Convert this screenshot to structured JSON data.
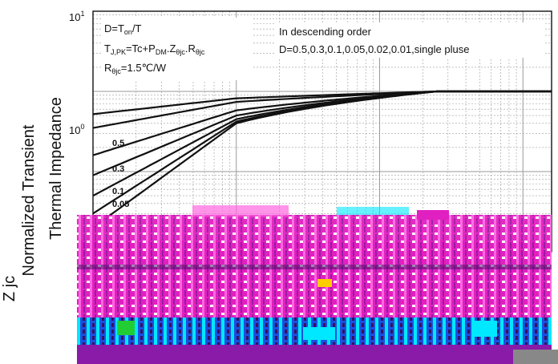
{
  "chart_data": {
    "type": "line",
    "x_scale": "log",
    "y_scale": "log",
    "ylim": [
      0.01,
      10
    ],
    "y_ticks": [
      {
        "value": 10,
        "label": "10",
        "exp": "1"
      },
      {
        "value": 1,
        "label": "10",
        "exp": "0"
      }
    ],
    "ylabel_lines": [
      "Normalized Transient",
      "Thermal   Impedance",
      "Z   jc"
    ],
    "grid": true,
    "annotations": {
      "left": [
        "D=T",
        "on",
        "/T",
        "T",
        "J,PK",
        "=Tc+P",
        "DM",
        ".Z",
        "θjc",
        ".R",
        "θjc",
        "R",
        "θjc",
        "=1.5℃/W"
      ],
      "right_line1": "In descending order",
      "right_line2": "D=0.5,0.3,0.1,0.05,0.02,0.01,single pluse"
    },
    "series": [
      {
        "name": "0.5",
        "y0": 0.52,
        "knee": 0.82
      },
      {
        "name": "0.3",
        "y0": 0.35,
        "knee": 0.74
      },
      {
        "name": "0.1",
        "y0": 0.16,
        "knee": 0.58
      },
      {
        "name": "0.05",
        "y0": 0.09,
        "knee": 0.5
      },
      {
        "name": "0.02",
        "y0": 0.05,
        "knee": 0.45
      },
      {
        "name": "0.01",
        "y0": 0.03,
        "knee": 0.42
      },
      {
        "name": "",
        "y0": 0.02,
        "knee": 0.4
      }
    ]
  },
  "colors": {
    "curve": "#111111",
    "grid": "#9a9a9a",
    "glitch_magenta": "#e020c0",
    "glitch_pink": "#ff66e0",
    "glitch_cyan": "#00e8ff",
    "glitch_blue": "#1a4fe0",
    "glitch_purple": "#8a1aa8",
    "glitch_dark": "#3a1060"
  }
}
